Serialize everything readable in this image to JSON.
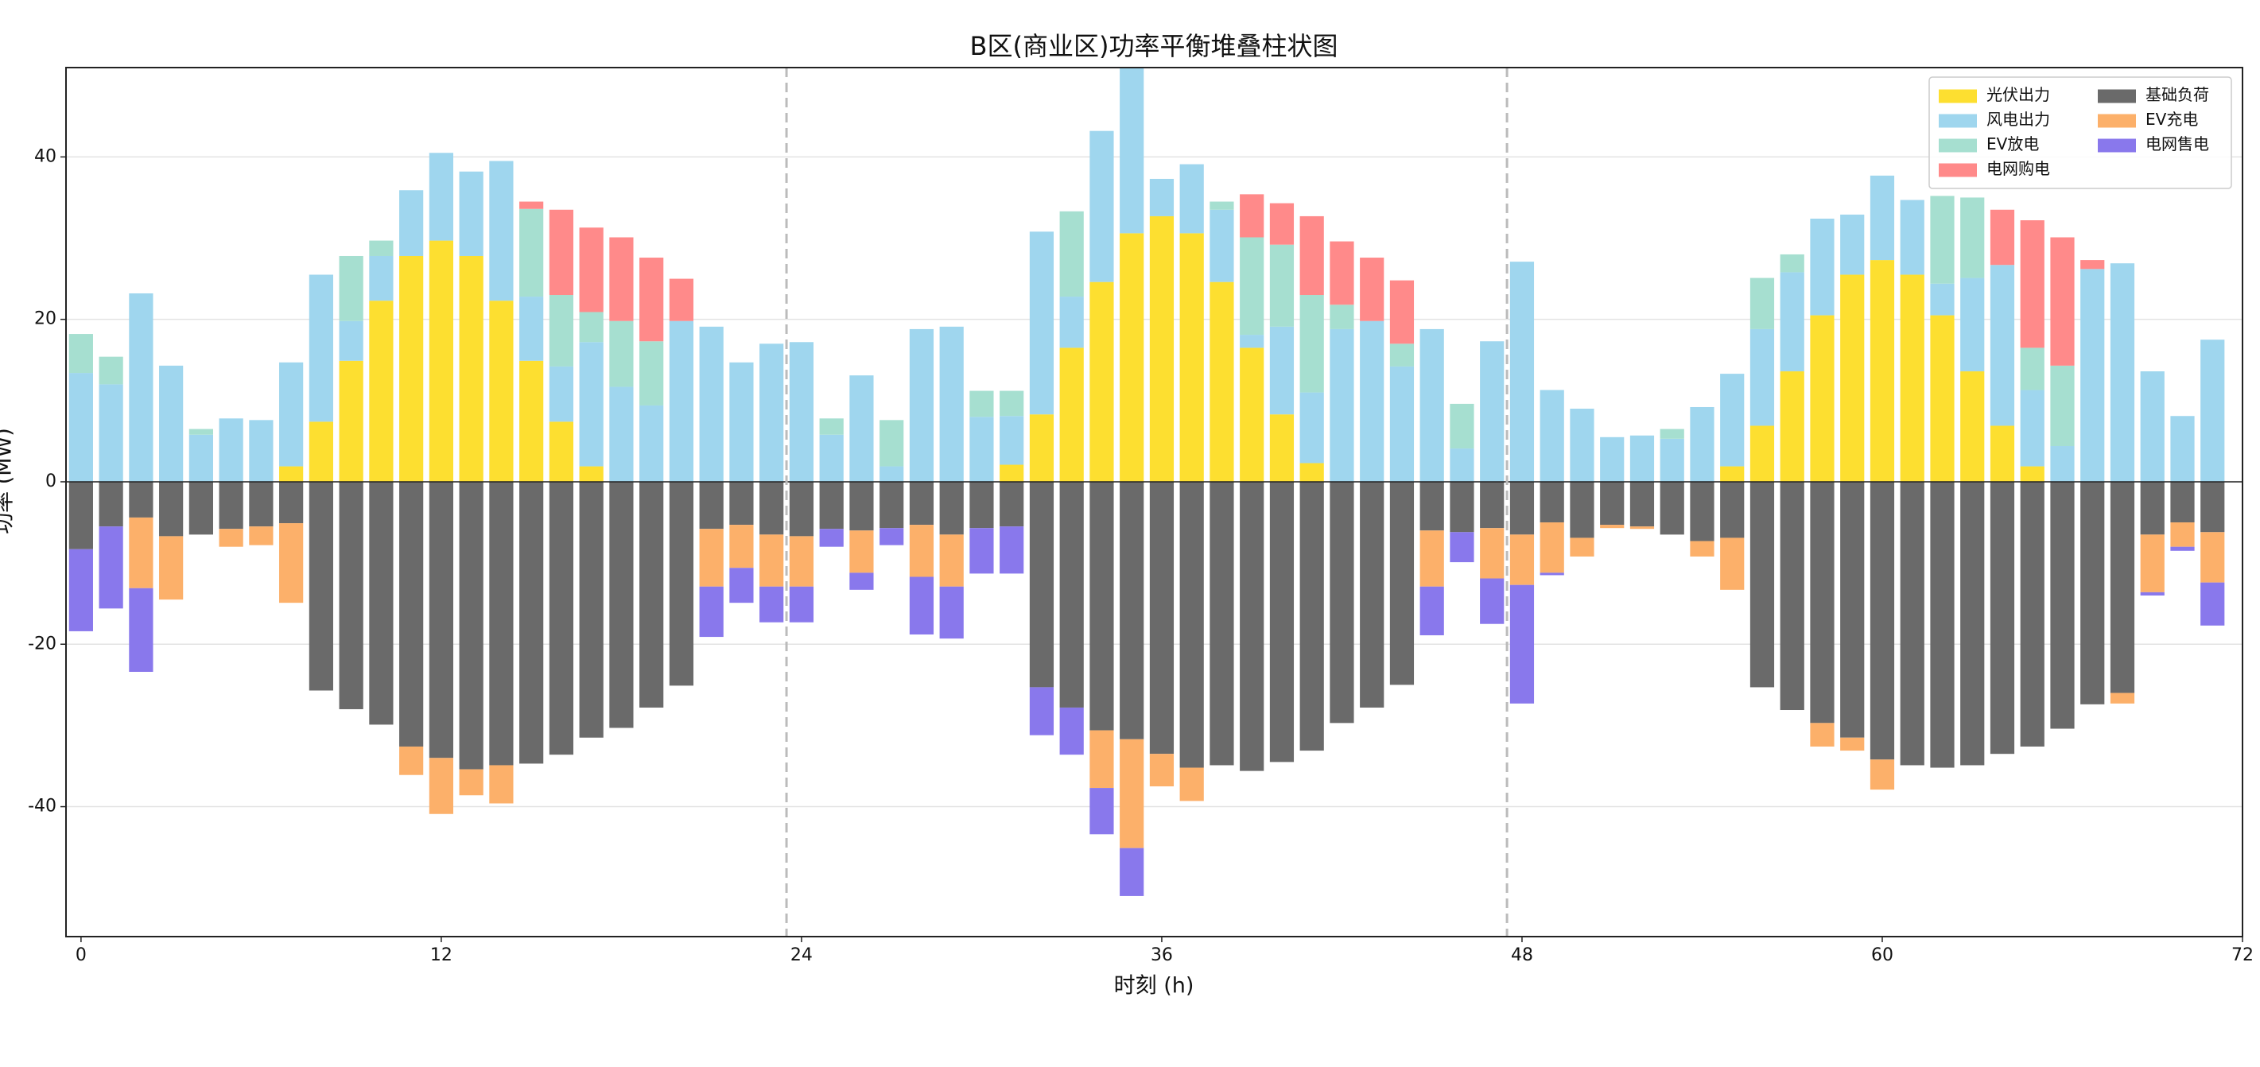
{
  "chart_data": {
    "type": "stacked_bar",
    "title": "B区(商业区)功率平衡堆叠柱状图",
    "xlabel": "时刻 (h)",
    "ylabel": "功率 (MW)",
    "x": [
      0,
      1,
      2,
      3,
      4,
      5,
      6,
      7,
      8,
      9,
      10,
      11,
      12,
      13,
      14,
      15,
      16,
      17,
      18,
      19,
      20,
      21,
      22,
      23,
      24,
      25,
      26,
      27,
      28,
      29,
      30,
      31,
      32,
      33,
      34,
      35,
      36,
      37,
      38,
      39,
      40,
      41,
      42,
      43,
      44,
      45,
      46,
      47,
      48,
      49,
      50,
      51,
      52,
      53,
      54,
      55,
      56,
      57,
      58,
      59,
      60,
      61,
      62,
      63,
      64,
      65,
      66,
      67,
      68,
      69,
      70,
      71
    ],
    "xlim": [
      -0.5,
      72
    ],
    "xticks": [
      0,
      12,
      24,
      36,
      48,
      60,
      72
    ],
    "ylim": [
      -56,
      51
    ],
    "yticks": [
      -40,
      -20,
      0,
      20,
      40
    ],
    "grid": true,
    "legend": "upper right",
    "vlines": [
      23.5,
      47.5
    ],
    "bar_width": 0.8,
    "series": [
      {
        "name": "光伏出力",
        "color": "#fddf30",
        "values": [
          0,
          0,
          0,
          0,
          0,
          0,
          0,
          1.9,
          7.4,
          14.9,
          22.3,
          27.8,
          29.7,
          27.8,
          22.3,
          14.9,
          7.4,
          1.9,
          0,
          0,
          0,
          0,
          0,
          0,
          0,
          0,
          0,
          0,
          0,
          0,
          0,
          2.1,
          8.3,
          16.5,
          24.6,
          30.6,
          32.7,
          30.6,
          24.6,
          16.5,
          8.3,
          2.3,
          0,
          0,
          0,
          0,
          0,
          0,
          0,
          0,
          0,
          0,
          0,
          0,
          0,
          1.9,
          6.9,
          13.6,
          20.5,
          25.5,
          27.3,
          25.5,
          20.5,
          13.6,
          6.9,
          1.9,
          0,
          0,
          0,
          0,
          0,
          0
        ]
      },
      {
        "name": "风电出力",
        "color": "#9fd6ee",
        "values": [
          13.4,
          12,
          23.2,
          14.3,
          5.8,
          7.8,
          7.6,
          12.8,
          18.1,
          4.9,
          5.5,
          8.1,
          10.8,
          10.4,
          17.2,
          7.9,
          6.8,
          15.3,
          11.7,
          9.4,
          19.8,
          19.1,
          14.7,
          17,
          17.2,
          5.8,
          13.1,
          1.9,
          18.8,
          19.1,
          8,
          6,
          22.5,
          6.3,
          18.6,
          20.4,
          4.6,
          8.5,
          8.9,
          1.6,
          10.8,
          8.7,
          18.8,
          19.8,
          14.2,
          18.8,
          4.1,
          17.3,
          27.1,
          11.3,
          9,
          5.5,
          5.7,
          5.3,
          9.2,
          11.4,
          11.9,
          12.2,
          11.9,
          7.4,
          10.4,
          9.2,
          3.9,
          11.5,
          19.8,
          9.4,
          4.4,
          26.2,
          26.9,
          13.6,
          8.1,
          17.5
        ]
      },
      {
        "name": "EV放电",
        "color": "#a6dfd0",
        "values": [
          4.8,
          3.4,
          0,
          0,
          0.7,
          0,
          0,
          0,
          0,
          8,
          1.9,
          0,
          0,
          0,
          0,
          10.8,
          8.8,
          3.7,
          8.1,
          7.9,
          0,
          0,
          0,
          0,
          0,
          2,
          0,
          5.7,
          0,
          0,
          3.2,
          3.1,
          0,
          10.5,
          0,
          0,
          0,
          0,
          1,
          12,
          10.1,
          12,
          3,
          0,
          2.8,
          0,
          5.5,
          0,
          0,
          0,
          0,
          0,
          0,
          1.2,
          0,
          0,
          6.3,
          2.2,
          0,
          0,
          0,
          0,
          10.8,
          9.9,
          0,
          5.2,
          9.9,
          0,
          0,
          0,
          0,
          0
        ]
      },
      {
        "name": "电网购电",
        "color": "#ff8a8a",
        "values": [
          0,
          0,
          0,
          0,
          0,
          0,
          0,
          0,
          0,
          0,
          0,
          0,
          0,
          0,
          0,
          0.9,
          10.5,
          10.4,
          10.3,
          10.3,
          5.2,
          0,
          0,
          0,
          0,
          0,
          0,
          0,
          0,
          0,
          0,
          0,
          0,
          0,
          0,
          0,
          0,
          0,
          0,
          5.3,
          5.1,
          9.7,
          7.8,
          7.8,
          7.8,
          0,
          0,
          0,
          0,
          0,
          0,
          0,
          0,
          0,
          0,
          0,
          0,
          0,
          0,
          0,
          0,
          0,
          0,
          0,
          6.8,
          15.7,
          15.8,
          1.1,
          0,
          0,
          0,
          0
        ]
      },
      {
        "name": "基础负荷",
        "color": "#6a6a6a",
        "values": [
          -8.3,
          -5.5,
          -4.4,
          -6.7,
          -6.5,
          -5.8,
          -5.5,
          -5.1,
          -25.7,
          -28,
          -29.9,
          -32.6,
          -34,
          -35.4,
          -34.9,
          -34.7,
          -33.6,
          -31.5,
          -30.3,
          -27.8,
          -25.1,
          -5.8,
          -5.3,
          -6.5,
          -6.7,
          -5.8,
          -6,
          -5.7,
          -5.3,
          -6.5,
          -5.7,
          -5.5,
          -25.3,
          -27.8,
          -30.6,
          -31.7,
          -33.5,
          -35.2,
          -34.9,
          -35.6,
          -34.5,
          -33.1,
          -29.7,
          -27.8,
          -25,
          -6,
          -6.2,
          -5.7,
          -6.5,
          -5,
          -6.9,
          -5.3,
          -5.5,
          -6.5,
          -7.3,
          -6.9,
          -25.3,
          -28.1,
          -29.7,
          -31.5,
          -34.2,
          -34.9,
          -35.2,
          -34.9,
          -33.5,
          -32.6,
          -30.4,
          -27.4,
          -26,
          -6.5,
          -5,
          -6.2
        ]
      },
      {
        "name": "EV充电",
        "color": "#fcb06a",
        "values": [
          0,
          0,
          -8.7,
          -7.8,
          0,
          -2.2,
          -2.3,
          -9.8,
          0,
          0,
          0,
          -3.5,
          -6.9,
          -3.2,
          -4.7,
          0,
          0,
          0,
          0,
          0,
          0,
          -7.1,
          -5.3,
          -6.4,
          -6.2,
          0,
          -5.2,
          0,
          -6.4,
          -6.4,
          0,
          0,
          0,
          0,
          -7.1,
          -13.4,
          -4,
          -4.1,
          0,
          0,
          0,
          0,
          0,
          0,
          0,
          -6.9,
          0,
          -6.2,
          -6.2,
          -6.2,
          -2.3,
          -0.4,
          -0.3,
          0,
          -1.9,
          -6.4,
          0,
          0,
          -2.9,
          -1.6,
          -3.7,
          0,
          0,
          0,
          0,
          0,
          0,
          0,
          -1.3,
          -7.1,
          -3,
          -6.2
        ]
      },
      {
        "name": "电网售电",
        "color": "#8978ec",
        "values": [
          -10.1,
          -10.1,
          -10.3,
          0,
          0,
          0,
          0,
          0,
          0,
          0,
          0,
          0,
          0,
          0,
          0,
          0,
          0,
          0,
          0,
          0,
          0,
          -6.2,
          -4.3,
          -4.4,
          -4.4,
          -2.2,
          -2.1,
          -2.1,
          -7.1,
          -6.4,
          -5.6,
          -5.8,
          -5.9,
          -5.8,
          -5.7,
          -5.9,
          0,
          0,
          0,
          0,
          0,
          0,
          0,
          0,
          0,
          -6,
          -3.7,
          -5.6,
          -14.6,
          -0.3,
          0,
          0,
          0,
          0,
          0,
          0,
          0,
          0,
          0,
          0,
          0,
          0,
          0,
          0,
          0,
          0,
          0,
          0,
          0,
          -0.4,
          -0.5,
          -5.3
        ]
      }
    ]
  }
}
